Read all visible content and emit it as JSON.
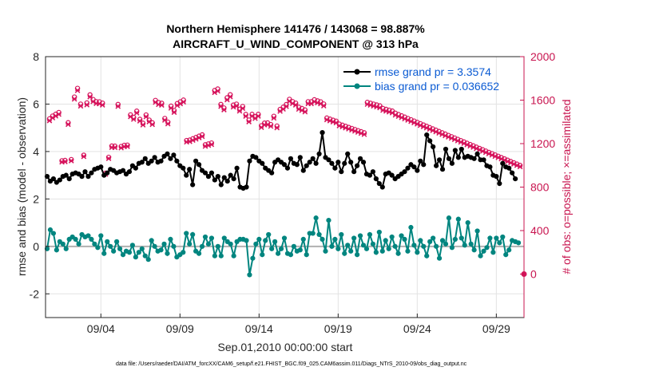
{
  "chart_data": {
    "type": "line",
    "title_line1": "Northern Hemisphere 141476 / 143068 = 98.887%",
    "title_line2": "AIRCRAFT_U_WIND_COMPONENT @ 313 hPa",
    "ylabel_left": "rmse and bias (model - observation)",
    "ylabel_right": "# of obs: o=possible; ×=assimilated",
    "xlabel": "Sep.01,2010 00:00:00 start",
    "footnote": "data file: /Users/raeder/DAI/ATM_forcXX/CAM6_setup/f.e21.FHIST_BGC.f09_025.CAM6assim.011/Diags_NTrS_2010-09/obs_diag_output.nc",
    "x_range_days": [
      0.5,
      30.75
    ],
    "y_left_range": [
      -3,
      8
    ],
    "y_left_ticks": [
      -2,
      0,
      2,
      4,
      6,
      8
    ],
    "y_left_tick_labels": [
      "-2",
      "0",
      "2",
      "4",
      "6",
      "8"
    ],
    "y_right_range": [
      -400,
      2000
    ],
    "y_right_ticks": [
      0,
      400,
      800,
      1200,
      1600,
      2000
    ],
    "y_right_tick_labels": [
      "0",
      "400",
      "800",
      "1200",
      "1600",
      "2000"
    ],
    "x_ticks": [
      4,
      9,
      14,
      19,
      24,
      29
    ],
    "x_tick_labels": [
      "09/04",
      "09/09",
      "09/14",
      "09/19",
      "09/24",
      "09/29"
    ],
    "grid": true,
    "legend_position": "top-right",
    "colors": {
      "rmse": "#000000",
      "bias": "#00857f",
      "obs": "#d6145c",
      "axis_right": "#c8144f",
      "zero_line": "#b0b0b0"
    },
    "series": [
      {
        "name": "rmse grand pr = 3.3574",
        "axis": "left",
        "values": [
          2.95,
          2.75,
          2.85,
          2.7,
          2.8,
          2.95,
          3.0,
          2.85,
          3.05,
          3.1,
          3.05,
          2.95,
          3.15,
          2.95,
          3.1,
          3.25,
          3.3,
          3.35,
          3.0,
          3.1,
          3.25,
          3.2,
          3.1,
          3.15,
          3.2,
          3.05,
          3.15,
          3.4,
          3.3,
          3.5,
          3.55,
          3.7,
          3.5,
          3.6,
          3.75,
          3.55,
          3.6,
          3.8,
          3.9,
          3.7,
          3.85,
          3.6,
          3.4,
          3.3,
          3.0,
          3.25,
          2.6,
          3.6,
          3.45,
          3.2,
          3.1,
          2.95,
          3.1,
          2.8,
          2.95,
          2.6,
          2.9,
          2.75,
          3.0,
          2.85,
          3.3,
          2.5,
          2.45,
          2.5,
          3.6,
          3.8,
          3.75,
          3.6,
          3.5,
          3.3,
          3.2,
          3.1,
          3.55,
          3.65,
          3.55,
          3.45,
          3.3,
          3.7,
          3.5,
          3.45,
          3.75,
          3.2,
          3.4,
          3.55,
          3.7,
          3.5,
          3.9,
          4.8,
          3.75,
          3.65,
          3.5,
          3.3,
          3.55,
          3.15,
          3.5,
          3.9,
          3.55,
          3.15,
          3.4,
          3.7,
          3.55,
          3.05,
          3.0,
          3.15,
          2.85,
          2.65,
          2.5,
          3.05,
          3.1,
          3.0,
          2.85,
          2.95,
          3.05,
          3.15,
          3.3,
          3.45,
          3.35,
          3.2,
          3.6,
          3.45,
          4.7,
          4.45,
          4.2,
          3.4,
          3.65,
          3.25,
          4.1,
          3.7,
          3.5,
          4.05,
          3.75,
          4.1,
          3.75,
          3.8,
          3.75,
          3.7,
          3.9,
          3.65,
          3.65,
          3.4,
          3.35,
          3.0,
          2.95,
          2.65,
          3.5,
          3.35,
          3.3,
          3.1,
          2.85
        ]
      },
      {
        "name": "bias grand pr = 0.036652",
        "axis": "left",
        "values": [
          -0.1,
          0.7,
          0.55,
          -0.15,
          0.2,
          0.1,
          -0.1,
          0.3,
          0.4,
          0.3,
          0.1,
          0.5,
          0.4,
          0.45,
          0.3,
          0.1,
          -0.05,
          0.45,
          -0.3,
          0.2,
          0.0,
          -0.2,
          0.2,
          -0.1,
          -0.35,
          -0.2,
          -0.25,
          0.05,
          -0.45,
          -0.25,
          -0.1,
          -0.4,
          -0.55,
          0.25,
          0.0,
          -0.2,
          -0.15,
          0.1,
          -0.3,
          0.3,
          0.0,
          -0.45,
          -0.35,
          -0.25,
          0.55,
          0.1,
          0.5,
          -0.2,
          -0.3,
          0.0,
          0.4,
          0.1,
          0.35,
          -0.4,
          0.0,
          -0.4,
          0.35,
          0.2,
          0.1,
          -0.4,
          0.2,
          0.3,
          0.3,
          0.25,
          -1.2,
          -0.5,
          0.1,
          0.3,
          -0.35,
          0.25,
          0.5,
          -0.1,
          0.2,
          -0.3,
          -0.1,
          0.35,
          -0.3,
          -0.35,
          0.0,
          -0.2,
          -0.15,
          0.3,
          -0.35,
          0.55,
          0.55,
          1.2,
          0.5,
          0.3,
          -0.2,
          1.1,
          0.0,
          0.3,
          -0.1,
          0.5,
          -0.3,
          0.05,
          -0.2,
          0.35,
          -0.35,
          0.45,
          0.05,
          -0.1,
          0.5,
          0.1,
          -0.25,
          0.6,
          -0.2,
          0.25,
          -0.1,
          0.4,
          0.0,
          -0.3,
          0.45,
          0.3,
          -0.2,
          0.8,
          0.05,
          -0.25,
          0.25,
          0.0,
          -0.4,
          0.2,
          0.35,
          0.0,
          -0.5,
          0.25,
          0.1,
          1.2,
          -0.05,
          0.3,
          1.15,
          0.35,
          0.05,
          1.0,
          0.1,
          -0.15,
          0.65,
          -0.4,
          -0.2,
          -0.05,
          0.35,
          -0.25,
          0.35,
          0.15,
          0.4,
          -0.35,
          -0.15,
          0.25,
          0.2,
          0.15
        ]
      },
      {
        "name": "possible",
        "axis": "right",
        "values": [
          1428,
          1454,
          1471,
          1487,
          1043,
          1046,
          1393,
          1054,
          1629,
          1709,
          1564,
          1094,
          1575,
          1649,
          1606,
          1587,
          1585,
          1573,
          929,
          1075,
          1178,
          1177,
          1561,
          1174,
          1185,
          1187,
          1465,
          1441,
          1499,
          1424,
          1388,
          1464,
          1417,
          1392,
          1598,
          1578,
          1572,
          1432,
          1398,
          1545,
          1505,
          1569,
          1585,
          1601,
          1229,
          1233,
          1245,
          1257,
          1269,
          1281,
          1190,
          1198,
          1206,
          1689,
          1703,
          1561,
          1528,
          1622,
          1650,
          1555,
          1564,
          1517,
          1542,
          1469,
          1417,
          1470,
          1449,
          1470,
          1365,
          1389,
          1391,
          1376,
          1452,
          1362,
          1515,
          1535,
          1560,
          1608,
          1587,
          1573,
          1535,
          1524,
          1510,
          1586,
          1586,
          1604,
          1594,
          1585,
          1565,
          1436,
          1426,
          1416,
          1407,
          1380,
          1370,
          1360,
          1350,
          1340,
          1330,
          1320,
          1310,
          1300,
          1580,
          1572,
          1564,
          1556,
          1548,
          1524,
          1516,
          1508,
          1500,
          1480,
          1468,
          1456,
          1444,
          1432,
          1420,
          1408,
          1396,
          1384,
          1372,
          1360,
          1348,
          1336,
          1324,
          1312,
          1300,
          1288,
          1276,
          1264,
          1252,
          1240,
          1228,
          1216,
          1204,
          1192,
          1180,
          1168,
          1156,
          1144,
          1132,
          1120,
          1108,
          1096,
          1084,
          1072,
          1060,
          1048,
          1036,
          1024,
          1012,
          1000
        ]
      },
      {
        "name": "assimilated",
        "axis": "right",
        "values": [
          1411,
          1437,
          1454,
          1470,
          1031,
          1034,
          1377,
          1042,
          1610,
          1689,
          1546,
          1081,
          1557,
          1630,
          1587,
          1569,
          1567,
          1555,
          918,
          1063,
          1165,
          1164,
          1543,
          1161,
          1172,
          1174,
          1448,
          1424,
          1482,
          1408,
          1372,
          1447,
          1401,
          1376,
          1580,
          1560,
          1554,
          1416,
          1382,
          1527,
          1488,
          1551,
          1567,
          1583,
          1215,
          1219,
          1231,
          1242,
          1254,
          1266,
          1176,
          1184,
          1192,
          1670,
          1684,
          1543,
          1511,
          1603,
          1631,
          1537,
          1546,
          1500,
          1524,
          1452,
          1401,
          1453,
          1432,
          1453,
          1349,
          1373,
          1375,
          1360,
          1435,
          1346,
          1498,
          1518,
          1542,
          1590,
          1569,
          1555,
          1517,
          1506,
          1492,
          1568,
          1568,
          1586,
          1576,
          1567,
          1547,
          1420,
          1410,
          1400,
          1391,
          1364,
          1355,
          1345,
          1335,
          1325,
          1315,
          1305,
          1295,
          1285,
          1562,
          1554,
          1546,
          1538,
          1530,
          1507,
          1499,
          1491,
          1483,
          1463,
          1451,
          1440,
          1428,
          1416,
          1404,
          1392,
          1380,
          1368,
          1356,
          1345,
          1333,
          1321,
          1309,
          1297,
          1285,
          1273,
          1261,
          1250,
          1238,
          1226,
          1214,
          1202,
          1190,
          1178,
          1167,
          1155,
          1143,
          1131,
          1119,
          1107,
          1095,
          1083,
          1072,
          1060,
          1048,
          1036,
          1024,
          1012,
          1000,
          988
        ]
      }
    ]
  }
}
